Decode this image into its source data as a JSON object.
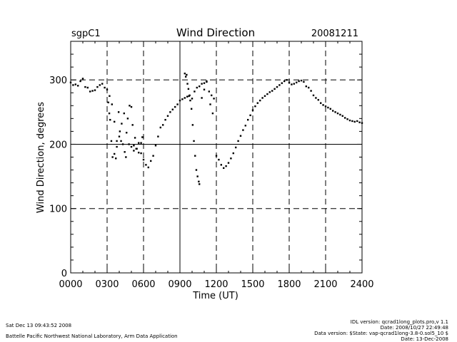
{
  "header": {
    "site": "sgpC1",
    "title": "Wind Direction",
    "date": "20081211"
  },
  "footer": {
    "left_line1": "Sat Dec 13 09:43:52 2008",
    "left_line2": "Battelle Pacific Northwest National Laboratory, Arm Data Application",
    "right_line1": "IDL version: qcrad1long_plots.pro,v 1.1",
    "right_line2": "Date: 2008/10/27 22:49:48",
    "right_line3": "Data version: $State: vap-qcrad1long-3.8-0.sol5_10 $",
    "right_line4": "Date: 13-Dec-2008"
  },
  "chart_data": {
    "type": "scatter",
    "title": "Wind Direction",
    "xlabel": "Time (UT)",
    "ylabel": "Wind Direction, degrees",
    "xlim": [
      0,
      2400
    ],
    "ylim": [
      0,
      360
    ],
    "xticks": [
      0,
      300,
      600,
      900,
      1200,
      1500,
      1800,
      2100,
      2400
    ],
    "xtick_labels": [
      "0000",
      "0300",
      "0600",
      "0900",
      "1200",
      "1500",
      "1800",
      "2100",
      "2400"
    ],
    "yticks": [
      0,
      100,
      200,
      300
    ],
    "ytick_labels": [
      "0",
      "100",
      "200",
      "300"
    ],
    "dashed_vlines": [
      300,
      600,
      1200,
      1500,
      1800,
      2100
    ],
    "solid_vlines": [
      900
    ],
    "dashed_hlines": [
      100,
      300
    ],
    "solid_hlines": [
      200
    ],
    "series": [
      {
        "name": "main",
        "x": [
          0,
          20,
          40,
          60,
          80,
          100,
          120,
          140,
          160,
          180,
          200,
          220,
          240,
          260,
          280,
          300,
          320,
          340,
          360,
          380,
          400,
          420,
          440,
          460,
          480,
          500,
          520,
          540,
          560,
          580,
          600,
          620,
          640,
          660,
          680,
          700,
          720,
          740,
          760,
          780,
          800,
          820,
          840,
          860,
          880,
          900,
          920,
          940,
          960,
          980,
          1000,
          1020,
          1040,
          1060,
          1080,
          1100,
          1120,
          1140,
          1160,
          1180,
          1200,
          1220,
          1240,
          1260,
          1280,
          1300,
          1320,
          1340,
          1360,
          1380,
          1400,
          1420,
          1440,
          1460,
          1480,
          1500,
          1520,
          1540,
          1560,
          1580,
          1600,
          1620,
          1640,
          1660,
          1680,
          1700,
          1720,
          1740,
          1760,
          1780,
          1800,
          1820,
          1840,
          1860,
          1880,
          1900,
          1920,
          1940,
          1960,
          1980,
          2000,
          2020,
          2040,
          2060,
          2080,
          2100,
          2120,
          2140,
          2160,
          2180,
          2200,
          2220,
          2240,
          2260,
          2280,
          2300,
          2320,
          2340,
          2360,
          2380,
          2400
        ],
        "y": [
          296,
          292,
          293,
          291,
          298,
          302,
          289,
          288,
          282,
          283,
          284,
          289,
          292,
          294,
          288,
          285,
          275,
          262,
          235,
          205,
          212,
          232,
          248,
          218,
          200,
          196,
          190,
          193,
          202,
          186,
          176,
          168,
          164,
          174,
          182,
          198,
          212,
          226,
          230,
          238,
          244,
          250,
          254,
          258,
          262,
          268,
          270,
          272,
          274,
          276,
          271,
          282,
          288,
          290,
          294,
          295,
          297,
          282,
          276,
          271,
          182,
          176,
          168,
          163,
          166,
          171,
          178,
          186,
          195,
          205,
          213,
          222,
          229,
          238,
          245,
          253,
          259,
          264,
          268,
          272,
          275,
          278,
          281,
          283,
          286,
          289,
          292,
          295,
          298,
          300,
          296,
          293,
          294,
          296,
          298,
          299,
          297,
          290,
          288,
          283,
          276,
          272,
          269,
          264,
          261,
          259,
          257,
          255,
          252,
          250,
          248,
          246,
          244,
          241,
          239,
          237,
          236,
          235,
          236,
          234,
          233
        ]
      },
      {
        "name": "scattered",
        "x": [
          310,
          318,
          325,
          335,
          345,
          360,
          372,
          380,
          395,
          405,
          415,
          430,
          445,
          455,
          470,
          485,
          500,
          510,
          520,
          530,
          545,
          560,
          580,
          590,
          940,
          948,
          955,
          962,
          970,
          975,
          985,
          995,
          1005,
          1015,
          1025,
          1035,
          1045,
          1055,
          1060,
          1080,
          1100,
          1120,
          1150,
          1170
        ],
        "y": [
          265,
          248,
          238,
          205,
          180,
          185,
          178,
          196,
          250,
          220,
          205,
          200,
          188,
          180,
          240,
          260,
          258,
          230,
          198,
          210,
          193,
          187,
          202,
          211,
          310,
          305,
          308,
          294,
          286,
          275,
          268,
          255,
          230,
          205,
          182,
          160,
          150,
          142,
          138,
          272,
          285,
          298,
          262,
          248
        ]
      }
    ]
  }
}
